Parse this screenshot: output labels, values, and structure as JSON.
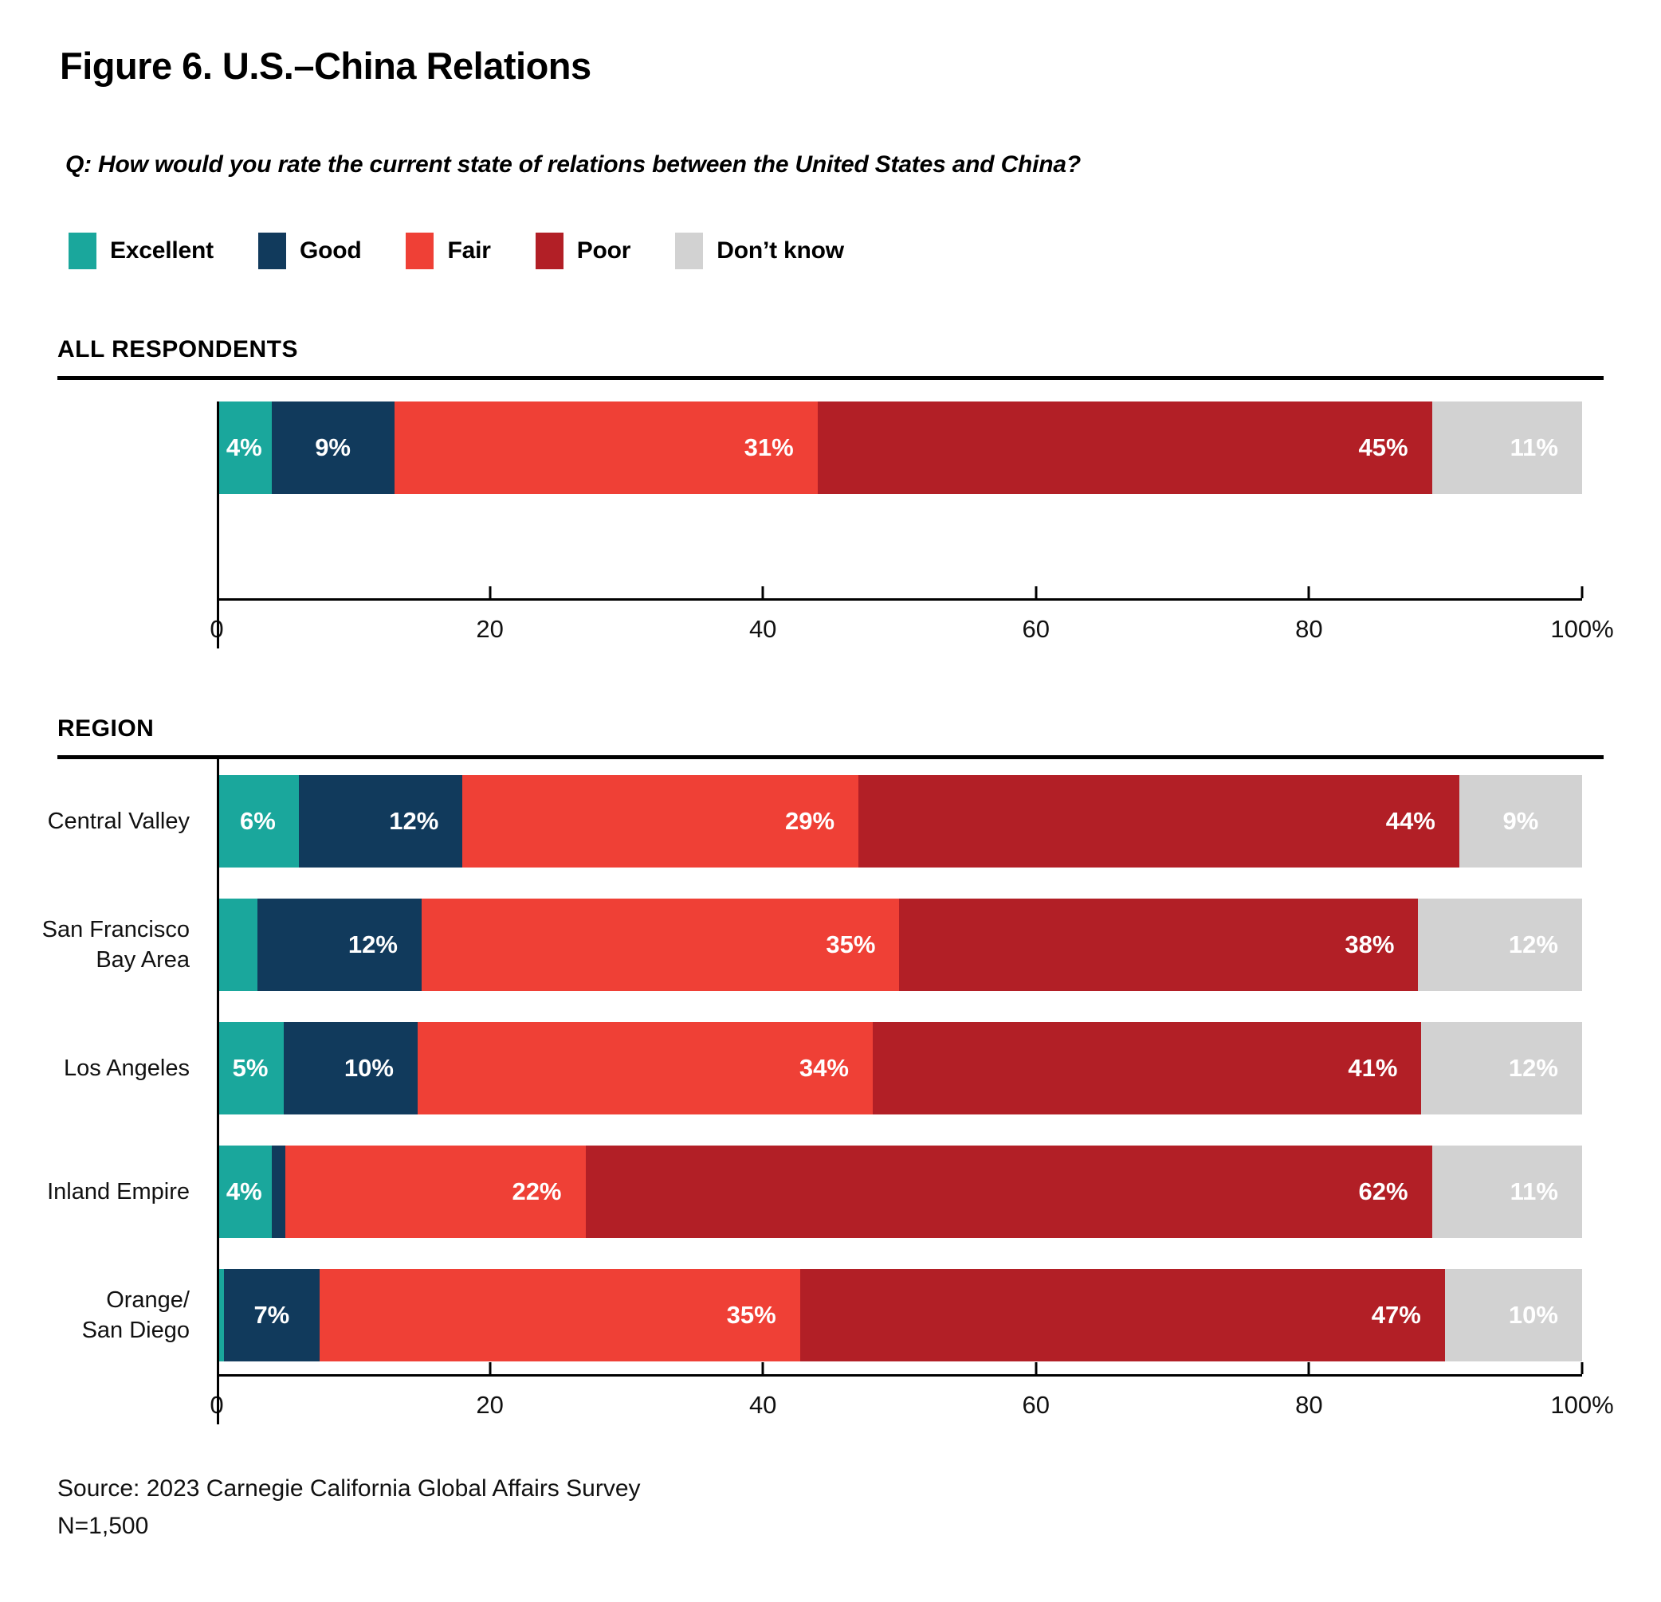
{
  "figure": {
    "title": "Figure 6. U.S.–China Relations",
    "question": "Q: How would you rate the current state of relations between the United States and China?"
  },
  "source": {
    "line1": "Source: 2023 Carnegie California Global Affairs Survey",
    "line2": "N=1,500"
  },
  "chart_data": {
    "type": "bar",
    "stacked": true,
    "orientation": "horizontal",
    "unit": "percent",
    "xlim": [
      0,
      100
    ],
    "legend_position": "top",
    "grid": false,
    "legend": [
      {
        "name": "Excellent",
        "color": "#1AA79C"
      },
      {
        "name": "Good",
        "color": "#113A5C"
      },
      {
        "name": "Fair",
        "color": "#EF4036"
      },
      {
        "name": "Poor",
        "color": "#B21F26"
      },
      {
        "name": "Don’t know",
        "color": "#D2D2D2"
      }
    ],
    "x_ticks": [
      {
        "pos": 0,
        "label": "0"
      },
      {
        "pos": 20,
        "label": "20"
      },
      {
        "pos": 40,
        "label": "40"
      },
      {
        "pos": 60,
        "label": "60"
      },
      {
        "pos": 80,
        "label": "80"
      },
      {
        "pos": 100,
        "label": "100%"
      }
    ],
    "groups": [
      {
        "heading": "ALL RESPONDENTS",
        "rows": [
          {
            "label": "",
            "values": [
              4,
              9,
              31,
              45,
              11
            ],
            "labels": [
              "4%",
              "9%",
              "31%",
              "45%",
              "11%"
            ]
          }
        ]
      },
      {
        "heading": "REGION",
        "rows": [
          {
            "label": "Central Valley",
            "values": [
              6,
              12,
              29,
              44,
              9
            ],
            "labels": [
              "6%",
              "12%",
              "29%",
              "44%",
              "9%"
            ]
          },
          {
            "label": "San Francisco\nBay Area",
            "values": [
              3,
              12,
              35,
              38,
              12
            ],
            "labels": [
              "",
              "12%",
              "35%",
              "38%",
              "12%"
            ]
          },
          {
            "label": "Los Angeles",
            "values": [
              5,
              10,
              34,
              41,
              12
            ],
            "labels": [
              "5%",
              "10%",
              "34%",
              "41%",
              "12%"
            ]
          },
          {
            "label": "Inland Empire",
            "values": [
              4,
              1,
              22,
              62,
              11
            ],
            "labels": [
              "4%",
              "",
              "22%",
              "62%",
              "11%"
            ]
          },
          {
            "label": "Orange/\nSan Diego",
            "values": [
              0.5,
              7,
              35,
              47,
              10
            ],
            "labels": [
              "",
              "7%",
              "35%",
              "47%",
              "10%"
            ]
          }
        ]
      }
    ]
  }
}
